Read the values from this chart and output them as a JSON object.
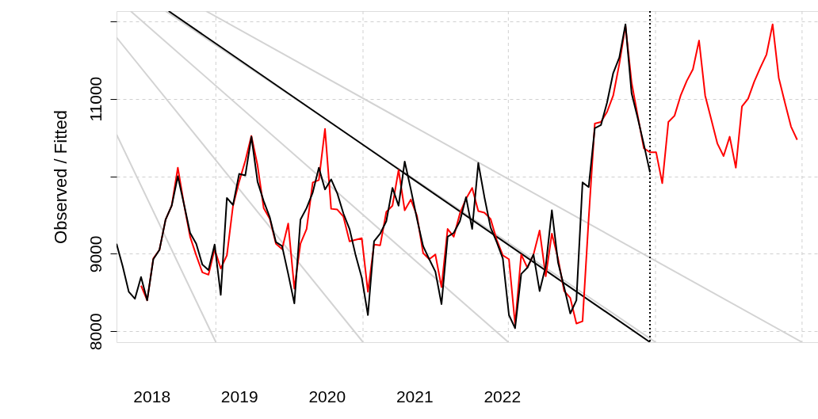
{
  "chart_data": {
    "type": "line",
    "ylabel": "Observed / Fitted",
    "xlim": [
      2017.6,
      2025.608
    ],
    "ylim": [
      7860,
      12130
    ],
    "xticks": [
      2018,
      2019,
      2020,
      2021,
      2022,
      {
        "value": 2018.734,
        "label": null
      },
      {
        "value": 2020.414,
        "label": null
      },
      {
        "value": 2022.073,
        "label": null
      },
      {
        "value": 2023.753,
        "label": null
      },
      {
        "value": 2025.426,
        "label": null
      }
    ],
    "yticks": [
      8000,
      9000,
      {
        "value": 10000,
        "label": null
      },
      11000,
      {
        "value": 12000,
        "label": null
      }
    ],
    "grid": true,
    "ref_lines": [
      {
        "axis": "x",
        "value": 2023.69,
        "color": "#000000",
        "line_style": "dotted"
      }
    ],
    "series": [
      {
        "color": "#d3d3d3",
        "x": [
          2017.6,
          2018.734
        ],
        "values": [
          10540,
          7860
        ]
      },
      {
        "color": "#d3d3d3",
        "x": [
          2017.6,
          2020.414
        ],
        "values": [
          11790,
          7860
        ]
      },
      {
        "color": "#d3d3d3",
        "x": [
          2017.761,
          2022.073
        ],
        "values": [
          12130,
          7860
        ]
      },
      {
        "color": "#d3d3d3",
        "x": [
          2018.622,
          2025.426
        ],
        "values": [
          12130,
          7860
        ]
      },
      {
        "color": "#d3d3d3",
        "x": [
          2018.16,
          2023.753
        ],
        "values": [
          12130,
          7860
        ]
      },
      {
        "color": "#000000",
        "x": [
          2018.195,
          2023.69
        ],
        "values": [
          12130,
          7860
        ]
      },
      {
        "color": "#ff0000",
        "x": [
          2017.88,
          2017.95,
          2018.02,
          2018.09,
          2018.16,
          2018.23,
          2018.3,
          2018.37,
          2018.44,
          2018.51,
          2018.58,
          2018.65,
          2018.72,
          2018.79,
          2018.86,
          2018.93,
          2019.0,
          2019.07,
          2019.14,
          2019.21,
          2019.28,
          2019.35,
          2019.42,
          2019.49,
          2019.56,
          2019.63,
          2019.7,
          2019.77,
          2019.84,
          2019.91,
          2019.98,
          2020.05,
          2020.12,
          2020.19,
          2020.26,
          2020.33,
          2020.4,
          2020.47,
          2020.54,
          2020.61,
          2020.68,
          2020.75,
          2020.82,
          2020.89,
          2020.96,
          2021.03,
          2021.1,
          2021.17,
          2021.24,
          2021.31,
          2021.38,
          2021.45,
          2021.52,
          2021.59,
          2021.66,
          2021.73,
          2021.8,
          2021.87,
          2021.94,
          2022.01,
          2022.08,
          2022.15,
          2022.22,
          2022.29,
          2022.36,
          2022.43,
          2022.5,
          2022.57,
          2022.64,
          2022.71,
          2022.78,
          2022.85,
          2022.92,
          2022.99,
          2023.06,
          2023.13,
          2023.2,
          2023.27,
          2023.34,
          2023.41,
          2023.48,
          2023.55,
          2023.62,
          2023.69,
          2023.76,
          2023.83,
          2023.9,
          2023.97,
          2024.04,
          2024.11,
          2024.18,
          2024.25,
          2024.32,
          2024.39,
          2024.46,
          2024.53,
          2024.6,
          2024.67,
          2024.74,
          2024.81,
          2024.88,
          2024.95,
          2025.02,
          2025.09,
          2025.16,
          2025.23,
          2025.3,
          2025.37
        ],
        "values": [
          8590,
          8400,
          8940,
          9050,
          9440,
          9620,
          10110,
          9640,
          9220,
          8980,
          8760,
          8730,
          9060,
          8810,
          8980,
          9620,
          9930,
          10200,
          10520,
          10140,
          9590,
          9450,
          9130,
          9060,
          9390,
          8550,
          9130,
          9320,
          9920,
          9950,
          10610,
          9580,
          9570,
          9480,
          9160,
          9180,
          9200,
          8510,
          9120,
          9110,
          9540,
          9620,
          10080,
          9560,
          9700,
          9490,
          9010,
          8930,
          8990,
          8570,
          9320,
          9220,
          9520,
          9710,
          9850,
          9550,
          9530,
          9450,
          9180,
          8980,
          8930,
          8090,
          8990,
          8820,
          8990,
          9300,
          8710,
          9260,
          8940,
          8520,
          8430,
          8100,
          8130,
          9450,
          10680,
          10700,
          10830,
          11040,
          11450,
          11940,
          11210,
          10780,
          10360,
          10310,
          10310,
          9910,
          10700,
          10780,
          11040,
          11230,
          11380,
          11750,
          11040,
          10730,
          10420,
          10260,
          10510,
          10110,
          10900,
          11000,
          11220,
          11400,
          11570,
          11960,
          11270,
          10950,
          10640,
          10470
        ]
      },
      {
        "color": "#000000",
        "x": [
          2017.6,
          2017.67,
          2017.74,
          2017.81,
          2017.88,
          2017.95,
          2018.02,
          2018.09,
          2018.16,
          2018.23,
          2018.3,
          2018.37,
          2018.44,
          2018.51,
          2018.58,
          2018.65,
          2018.72,
          2018.79,
          2018.86,
          2018.93,
          2019.0,
          2019.07,
          2019.14,
          2019.21,
          2019.28,
          2019.35,
          2019.42,
          2019.49,
          2019.56,
          2019.63,
          2019.7,
          2019.77,
          2019.84,
          2019.91,
          2019.98,
          2020.05,
          2020.12,
          2020.19,
          2020.26,
          2020.33,
          2020.4,
          2020.47,
          2020.54,
          2020.61,
          2020.68,
          2020.75,
          2020.82,
          2020.89,
          2020.96,
          2021.03,
          2021.1,
          2021.17,
          2021.24,
          2021.31,
          2021.38,
          2021.45,
          2021.52,
          2021.59,
          2021.66,
          2021.73,
          2021.8,
          2021.87,
          2021.94,
          2022.01,
          2022.08,
          2022.15,
          2022.22,
          2022.29,
          2022.36,
          2022.43,
          2022.5,
          2022.57,
          2022.64,
          2022.71,
          2022.78,
          2022.85,
          2022.92,
          2022.99,
          2023.06,
          2023.13,
          2023.2,
          2023.27,
          2023.34,
          2023.41,
          2023.48,
          2023.55,
          2023.62,
          2023.69
        ],
        "values": [
          9130,
          8840,
          8510,
          8420,
          8700,
          8400,
          8930,
          9050,
          9440,
          9620,
          10000,
          9640,
          9270,
          9130,
          8860,
          8790,
          9120,
          8470,
          9720,
          9630,
          10030,
          10010,
          10510,
          9930,
          9680,
          9470,
          9150,
          9100,
          8740,
          8360,
          9440,
          9590,
          9790,
          10110,
          9830,
          9960,
          9780,
          9520,
          9320,
          8980,
          8690,
          8210,
          9160,
          9260,
          9420,
          9850,
          9620,
          10190,
          9830,
          9450,
          9100,
          8930,
          8770,
          8350,
          9220,
          9270,
          9420,
          9730,
          9320,
          10170,
          9730,
          9340,
          9150,
          8940,
          8210,
          8040,
          8740,
          8820,
          8990,
          8520,
          8840,
          9560,
          8890,
          8570,
          8230,
          8400,
          9920,
          9860,
          10620,
          10660,
          10950,
          11330,
          11530,
          11960,
          11070,
          10750,
          10410,
          10050
        ]
      }
    ]
  }
}
